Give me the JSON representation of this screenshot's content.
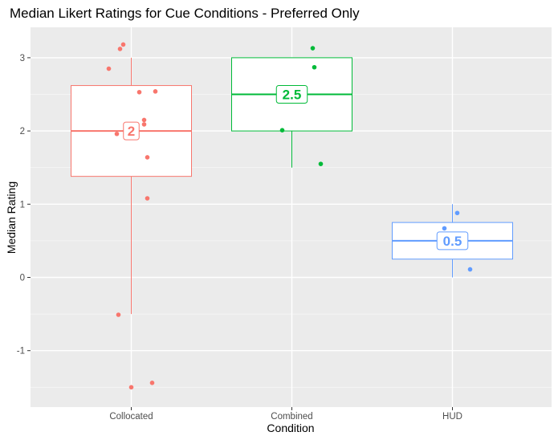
{
  "chart_data": {
    "type": "boxplot",
    "title": "Median Likert Ratings for Cue Conditions - Preferred Only",
    "xlabel": "Condition",
    "ylabel": "Median Rating",
    "categories": [
      "Collocated",
      "Combined",
      "HUD"
    ],
    "ylim": [
      -1.7,
      3.4
    ],
    "yticks": [
      -1,
      0,
      1,
      2,
      3
    ],
    "grid": true,
    "legend": "none",
    "colors": [
      "#f8766d",
      "#00ba38",
      "#619cff"
    ],
    "boxes": [
      {
        "category": "Collocated",
        "q1": 1.38,
        "median": 2.0,
        "q3": 2.62,
        "whisker_low": -0.5,
        "whisker_high": 3.0,
        "median_label": "2",
        "points": [
          {
            "x": 0.86,
            "y": 2.85
          },
          {
            "x": 0.93,
            "y": 3.12
          },
          {
            "x": 0.95,
            "y": 3.18
          },
          {
            "x": 1.05,
            "y": 2.53
          },
          {
            "x": 1.15,
            "y": 2.54
          },
          {
            "x": 1.08,
            "y": 2.15
          },
          {
            "x": 1.08,
            "y": 2.09
          },
          {
            "x": 0.91,
            "y": 1.96
          },
          {
            "x": 1.1,
            "y": 1.64
          },
          {
            "x": 1.1,
            "y": 1.08
          },
          {
            "x": 0.92,
            "y": -0.51
          },
          {
            "x": 1.0,
            "y": -1.5
          },
          {
            "x": 1.13,
            "y": -1.44
          }
        ]
      },
      {
        "category": "Combined",
        "q1": 2.0,
        "median": 2.5,
        "q3": 3.0,
        "whisker_low": 1.5,
        "whisker_high": 3.0,
        "median_label": "2.5",
        "points": [
          {
            "x": 2.13,
            "y": 3.13
          },
          {
            "x": 2.14,
            "y": 2.87
          },
          {
            "x": 1.94,
            "y": 2.01
          },
          {
            "x": 2.18,
            "y": 1.55
          }
        ]
      },
      {
        "category": "HUD",
        "q1": 0.25,
        "median": 0.5,
        "q3": 0.75,
        "whisker_low": 0.0,
        "whisker_high": 1.0,
        "median_label": "0.5",
        "points": [
          {
            "x": 3.03,
            "y": 0.88
          },
          {
            "x": 2.95,
            "y": 0.67
          },
          {
            "x": 3.11,
            "y": 0.11
          }
        ]
      }
    ]
  }
}
